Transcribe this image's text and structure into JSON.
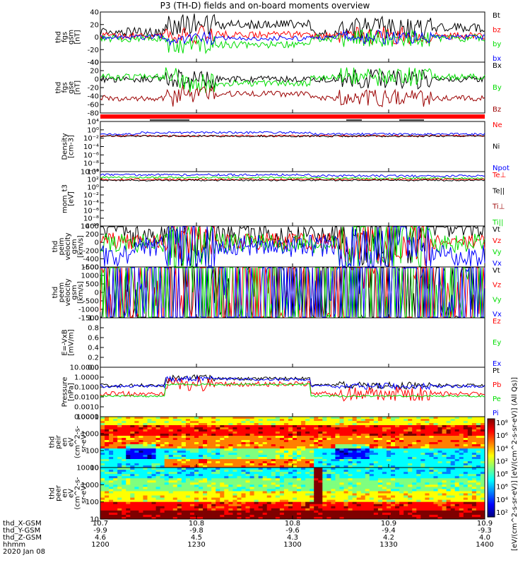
{
  "title": "P3 (TH-D) fields and on-board moments overview",
  "colors": {
    "black": "#000000",
    "red": "#ff0000",
    "green": "#00dd00",
    "blue": "#0000ff",
    "darkred": "#9b0000"
  },
  "chart_data": [
    {
      "type": "line",
      "id": "fgs_gsm",
      "ylabel": [
        "thd",
        "fgs",
        "gsm",
        "[nT]"
      ],
      "ylim": [
        -40,
        40
      ],
      "yticks": [
        "40",
        "20",
        "0",
        "-20",
        "-40"
      ],
      "legend": [
        {
          "name": "Bt",
          "color": "black"
        },
        {
          "name": "bz",
          "color": "red"
        },
        {
          "name": "by",
          "color": "green"
        },
        {
          "name": "bx",
          "color": "blue"
        }
      ]
    },
    {
      "type": "line",
      "id": "fgs_gse",
      "ylabel": [
        "thd",
        "fgs",
        "gse",
        "[nT]"
      ],
      "ylim": [
        -80,
        40
      ],
      "yticks": [
        "40",
        "20",
        "0",
        "-20",
        "-40",
        "-60",
        "-80"
      ],
      "legend": [
        {
          "name": "Bx",
          "color": "black"
        },
        {
          "name": "By",
          "color": "green"
        },
        {
          "name": "Bz",
          "color": "darkred"
        }
      ]
    },
    {
      "type": "line",
      "id": "density",
      "ylabel": [
        "Density",
        "[cm-3]"
      ],
      "ylim": [
        1e-10,
        10000.0
      ],
      "log": true,
      "yticks": [
        "10⁴",
        "10⁰",
        "10⁻²",
        "10⁻⁴",
        "10⁻⁶",
        "10⁻⁸",
        "10⁻¹⁰"
      ],
      "legend": [
        {
          "name": "Ne",
          "color": "red"
        },
        {
          "name": "Ni",
          "color": "black"
        },
        {
          "name": "Npot",
          "color": "blue"
        }
      ]
    },
    {
      "type": "line",
      "id": "temp",
      "ylabel": [
        "mom_t3",
        "[eV]"
      ],
      "ylim": [
        1e-10,
        10000.0
      ],
      "log": true,
      "yticks": [
        "10⁴",
        "10²",
        "10⁰",
        "10⁻²",
        "10⁻⁴",
        "10⁻⁶",
        "10⁻⁸",
        "10⁻¹⁰"
      ],
      "legend": [
        {
          "name": "Te⊥",
          "color": "red"
        },
        {
          "name": "Te||",
          "color": "black"
        },
        {
          "name": "Ti⊥",
          "color": "darkred"
        },
        {
          "name": "Ti||",
          "color": "green"
        }
      ]
    },
    {
      "type": "line",
      "id": "vi",
      "ylabel": [
        "thd",
        "peim",
        "velocity",
        "gsm",
        "[km/s]"
      ],
      "ylim": [
        -600,
        400
      ],
      "yticks": [
        "400",
        "200",
        "0",
        "-200",
        "-400",
        "-600"
      ],
      "legend": [
        {
          "name": "Vt",
          "color": "black"
        },
        {
          "name": "Vz",
          "color": "red"
        },
        {
          "name": "Vy",
          "color": "green"
        },
        {
          "name": "Vx",
          "color": "blue"
        }
      ]
    },
    {
      "type": "line",
      "id": "ve",
      "ylabel": [
        "thd",
        "peem",
        "velocity",
        "gsm",
        "[km/s]"
      ],
      "ylim": [
        -1500,
        1500
      ],
      "yticks": [
        "1500",
        "1000",
        "500",
        "0",
        "-500",
        "-1000",
        "-1500"
      ],
      "legend": [
        {
          "name": "Vt",
          "color": "black"
        },
        {
          "name": "Vz",
          "color": "red"
        },
        {
          "name": "Vy",
          "color": "green"
        },
        {
          "name": "Vx",
          "color": "blue"
        }
      ]
    },
    {
      "type": "line",
      "id": "efield",
      "ylabel": [
        "E=-VxB",
        "[mV/m]"
      ],
      "ylim": [
        0.0,
        1.0
      ],
      "yticks": [
        "1.0",
        "0.8",
        "0.6",
        "0.4",
        "0.2",
        "0.0"
      ],
      "legend": [
        {
          "name": "Ez",
          "color": "red"
        },
        {
          "name": "Ey",
          "color": "green"
        },
        {
          "name": "Ex",
          "color": "blue"
        }
      ]
    },
    {
      "type": "line",
      "id": "pressure",
      "ylabel": [
        "Pressure",
        "[nPa]"
      ],
      "ylim": [
        0.0001,
        10
      ],
      "log": true,
      "yticks": [
        "10.0000",
        "1.0000",
        "0.1000",
        "0.0100",
        "0.0010",
        "0.0001"
      ],
      "legend": [
        {
          "name": "Pt",
          "color": "black"
        },
        {
          "name": "Pb",
          "color": "red"
        },
        {
          "name": "Pe",
          "color": "green"
        },
        {
          "name": "Pi",
          "color": "blue"
        }
      ]
    },
    {
      "type": "heatmap",
      "id": "ion_spec",
      "ylabel": [
        "thd",
        "peir",
        "en",
        "eV",
        "(cm^2-s-",
        "sr-eV)"
      ],
      "ylim": [
        10,
        10000
      ],
      "log": true,
      "yticks": [
        "10000",
        "1000",
        "100",
        "10"
      ]
    },
    {
      "type": "heatmap",
      "id": "elec_spec",
      "ylabel": [
        "thd",
        "peer",
        "en",
        "eV",
        "(cm^2-s-",
        "sr-eV)"
      ],
      "ylim": [
        10,
        10000
      ],
      "log": true,
      "yticks": [
        "10000",
        "1000",
        "100",
        "10"
      ]
    }
  ],
  "colorbar": {
    "ticks": [
      "10⁸",
      "10⁶",
      "10⁴",
      "10²",
      "10⁸",
      "10⁶",
      "10⁴",
      "10²"
    ],
    "label": "[eV/(cm^2-s-sr-eV)] [eV/(cm^2-s-sr-eV)] (All Qs)]"
  },
  "footer": {
    "rows": [
      {
        "label": "thd_X-GSM",
        "values": [
          "10.7",
          "10.8",
          "10.8",
          "10.9",
          "10.9"
        ]
      },
      {
        "label": "thd_Y-GSM",
        "values": [
          "-9.9",
          "-9.8",
          "-9.6",
          "-9.4",
          "-9.3"
        ]
      },
      {
        "label": "thd_Z-GSM",
        "values": [
          "4.6",
          "4.5",
          "4.3",
          "4.2",
          "4.0"
        ]
      },
      {
        "label": "hhmm",
        "values": [
          "1200",
          "1230",
          "1300",
          "1330",
          "1400"
        ]
      }
    ],
    "date": "2020 Jan 08"
  }
}
